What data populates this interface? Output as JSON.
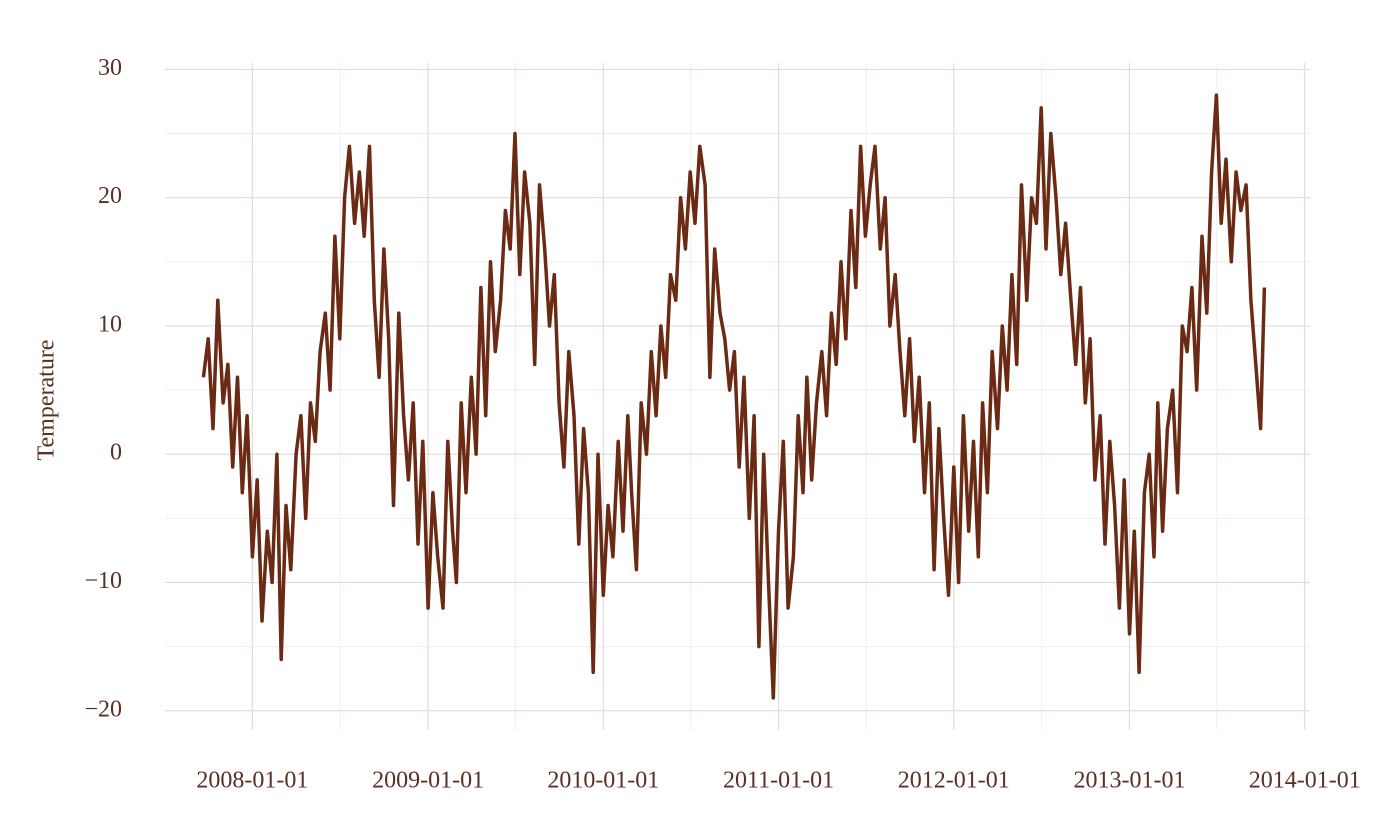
{
  "chart_data": {
    "type": "line",
    "ylabel": "Temperature",
    "xlim": [
      "2007-07-03",
      "2014-01-12"
    ],
    "xticks": [
      "2008-01-01",
      "2009-01-01",
      "2010-01-01",
      "2011-01-01",
      "2012-01-01",
      "2013-01-01",
      "2014-01-01"
    ],
    "ylim": [
      -21.5,
      30.5
    ],
    "yticks": [
      {
        "value": -20,
        "label": "−20"
      },
      {
        "value": -10,
        "label": "−10"
      },
      0,
      10,
      20,
      30
    ],
    "grid": true,
    "minor_grid": true,
    "x": [
      "2007-09-21",
      "2007-10-01",
      "2007-10-11",
      "2007-10-21",
      "2007-11-01",
      "2007-11-11",
      "2007-11-21",
      "2007-12-01",
      "2007-12-11",
      "2007-12-21",
      "2008-01-01",
      "2008-01-11",
      "2008-01-21",
      "2008-02-01",
      "2008-02-11",
      "2008-02-21",
      "2008-03-01",
      "2008-03-11",
      "2008-03-21",
      "2008-04-01",
      "2008-04-11",
      "2008-04-21",
      "2008-05-01",
      "2008-05-11",
      "2008-05-21",
      "2008-06-01",
      "2008-06-11",
      "2008-06-21",
      "2008-07-01",
      "2008-07-11",
      "2008-07-21",
      "2008-08-01",
      "2008-08-11",
      "2008-08-21",
      "2008-09-01",
      "2008-09-11",
      "2008-09-21",
      "2008-10-01",
      "2008-10-11",
      "2008-10-21",
      "2008-11-01",
      "2008-11-11",
      "2008-11-21",
      "2008-12-01",
      "2008-12-11",
      "2008-12-21",
      "2009-01-01",
      "2009-01-11",
      "2009-01-21",
      "2009-02-01",
      "2009-02-11",
      "2009-02-21",
      "2009-03-01",
      "2009-03-11",
      "2009-03-21",
      "2009-04-01",
      "2009-04-11",
      "2009-04-21",
      "2009-05-01",
      "2009-05-11",
      "2009-05-21",
      "2009-06-01",
      "2009-06-11",
      "2009-06-21",
      "2009-07-01",
      "2009-07-11",
      "2009-07-21",
      "2009-08-01",
      "2009-08-11",
      "2009-08-21",
      "2009-09-01",
      "2009-09-11",
      "2009-09-21",
      "2009-10-01",
      "2009-10-11",
      "2009-10-21",
      "2009-11-01",
      "2009-11-11",
      "2009-11-21",
      "2009-12-01",
      "2009-12-11",
      "2009-12-21",
      "2010-01-01",
      "2010-01-11",
      "2010-01-21",
      "2010-02-01",
      "2010-02-11",
      "2010-02-21",
      "2010-03-01",
      "2010-03-11",
      "2010-03-21",
      "2010-04-01",
      "2010-04-11",
      "2010-04-21",
      "2010-05-01",
      "2010-05-11",
      "2010-05-21",
      "2010-06-01",
      "2010-06-11",
      "2010-06-21",
      "2010-07-01",
      "2010-07-11",
      "2010-07-21",
      "2010-08-01",
      "2010-08-11",
      "2010-08-21",
      "2010-09-01",
      "2010-09-11",
      "2010-09-21",
      "2010-10-01",
      "2010-10-11",
      "2010-10-21",
      "2010-11-01",
      "2010-11-11",
      "2010-11-21",
      "2010-12-01",
      "2010-12-11",
      "2010-12-21",
      "2011-01-01",
      "2011-01-11",
      "2011-01-21",
      "2011-02-01",
      "2011-02-11",
      "2011-02-21",
      "2011-03-01",
      "2011-03-11",
      "2011-03-21",
      "2011-04-01",
      "2011-04-11",
      "2011-04-21",
      "2011-05-01",
      "2011-05-11",
      "2011-05-21",
      "2011-06-01",
      "2011-06-11",
      "2011-06-21",
      "2011-07-01",
      "2011-07-11",
      "2011-07-21",
      "2011-08-01",
      "2011-08-11",
      "2011-08-21",
      "2011-09-01",
      "2011-09-11",
      "2011-09-21",
      "2011-10-01",
      "2011-10-11",
      "2011-10-21",
      "2011-11-01",
      "2011-11-11",
      "2011-11-21",
      "2011-12-01",
      "2011-12-11",
      "2011-12-21",
      "2012-01-01",
      "2012-01-11",
      "2012-01-21",
      "2012-02-01",
      "2012-02-11",
      "2012-02-21",
      "2012-03-01",
      "2012-03-11",
      "2012-03-21",
      "2012-04-01",
      "2012-04-11",
      "2012-04-21",
      "2012-05-01",
      "2012-05-11",
      "2012-05-21",
      "2012-06-01",
      "2012-06-11",
      "2012-06-21",
      "2012-07-01",
      "2012-07-11",
      "2012-07-21",
      "2012-08-01",
      "2012-08-11",
      "2012-08-21",
      "2012-09-01",
      "2012-09-11",
      "2012-09-21",
      "2012-10-01",
      "2012-10-11",
      "2012-10-21",
      "2012-11-01",
      "2012-11-11",
      "2012-11-21",
      "2012-12-01",
      "2012-12-11",
      "2012-12-21",
      "2013-01-01",
      "2013-01-11",
      "2013-01-21",
      "2013-02-01",
      "2013-02-11",
      "2013-02-21",
      "2013-03-01",
      "2013-03-11",
      "2013-03-21",
      "2013-04-01",
      "2013-04-11",
      "2013-04-21",
      "2013-05-01",
      "2013-05-11",
      "2013-05-21",
      "2013-06-01",
      "2013-06-11",
      "2013-06-21",
      "2013-07-01",
      "2013-07-11",
      "2013-07-21",
      "2013-08-01",
      "2013-08-11",
      "2013-08-21",
      "2013-09-01",
      "2013-09-11",
      "2013-09-21",
      "2013-10-01",
      "2013-10-09"
    ],
    "series": [
      {
        "color": "#6b2a14",
        "values": [
          6,
          9,
          2,
          12,
          4,
          7,
          -1,
          6,
          -3,
          3,
          -8,
          -2,
          -13,
          -6,
          -10,
          0,
          -16,
          -4,
          -9,
          0,
          3,
          -5,
          4,
          1,
          8,
          11,
          5,
          17,
          9,
          20,
          24,
          18,
          22,
          17,
          24,
          12,
          6,
          16,
          9,
          -4,
          11,
          3,
          -2,
          4,
          -7,
          1,
          -12,
          -3,
          -8,
          -12,
          1,
          -6,
          -10,
          4,
          -3,
          6,
          0,
          13,
          3,
          15,
          8,
          12,
          19,
          16,
          25,
          14,
          22,
          18,
          7,
          21,
          16,
          10,
          14,
          4,
          -1,
          8,
          3,
          -7,
          2,
          -3,
          -17,
          0,
          -11,
          -4,
          -8,
          1,
          -6,
          3,
          -3,
          -9,
          4,
          0,
          8,
          3,
          10,
          6,
          14,
          12,
          20,
          16,
          22,
          18,
          24,
          21,
          6,
          16,
          11,
          9,
          5,
          8,
          -1,
          6,
          -5,
          3,
          -15,
          0,
          -10,
          -19,
          -6,
          1,
          -12,
          -8,
          3,
          -3,
          6,
          -2,
          4,
          8,
          3,
          11,
          7,
          15,
          9,
          19,
          13,
          24,
          17,
          21,
          24,
          16,
          20,
          10,
          14,
          8,
          3,
          9,
          1,
          6,
          -3,
          4,
          -9,
          2,
          -5,
          -11,
          -1,
          -10,
          3,
          -6,
          1,
          -8,
          4,
          -3,
          8,
          2,
          10,
          5,
          14,
          7,
          21,
          12,
          20,
          18,
          27,
          16,
          25,
          20,
          14,
          18,
          12,
          7,
          13,
          4,
          9,
          -2,
          3,
          -7,
          1,
          -4,
          -12,
          -2,
          -14,
          -6,
          -17,
          -3,
          0,
          -8,
          4,
          -6,
          2,
          5,
          -3,
          10,
          8,
          13,
          5,
          17,
          11,
          22,
          28,
          18,
          23,
          15,
          22,
          19,
          21,
          12,
          7,
          2,
          13
        ]
      }
    ]
  }
}
